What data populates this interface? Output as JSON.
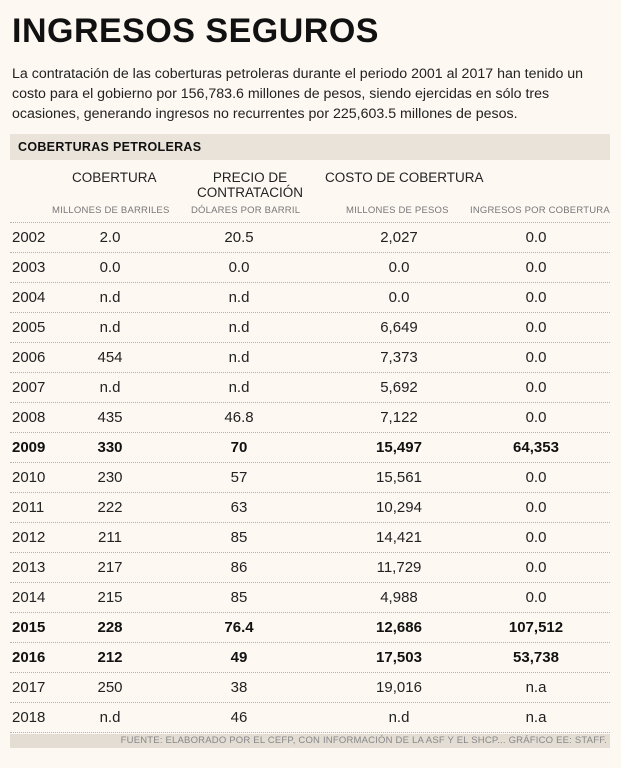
{
  "header": {
    "title": "INGRESOS SEGUROS",
    "intro": "La contratación de las coberturas petroleras durante el periodo 2001 al 2017 han tenido un costo para el gobierno por 156,783.6 millones de pesos, siendo ejercidas en sólo tres ocasiones, generando ingresos no recurrentes por 225,603.5 millones de pesos."
  },
  "table": {
    "section_title": "COBERTURAS PETROLERAS",
    "columns": {
      "cobertura": "COBERTURA",
      "precio_l1": "PRECIO DE",
      "precio_l2": "CONTRATACIÓN",
      "costo": "COSTO DE COBERTURA"
    },
    "subheaders": {
      "cobertura": "MILLONES DE BARRILES",
      "precio": "DÓLARES POR BARRIL",
      "costo": "MILLONES DE PESOS",
      "ingresos": "INGRESOS POR COBERTURA"
    },
    "rows": [
      {
        "year": "2002",
        "cobertura": "2.0",
        "precio": "20.5",
        "costo": "2,027",
        "ingresos": "0.0",
        "highlight": false
      },
      {
        "year": "2003",
        "cobertura": "0.0",
        "precio": "0.0",
        "costo": "0.0",
        "ingresos": "0.0",
        "highlight": false
      },
      {
        "year": "2004",
        "cobertura": "n.d",
        "precio": "n.d",
        "costo": "0.0",
        "ingresos": "0.0",
        "highlight": false
      },
      {
        "year": "2005",
        "cobertura": "n.d",
        "precio": "n.d",
        "costo": "6,649",
        "ingresos": "0.0",
        "highlight": false
      },
      {
        "year": "2006",
        "cobertura": "454",
        "precio": "n.d",
        "costo": "7,373",
        "ingresos": "0.0",
        "highlight": false
      },
      {
        "year": "2007",
        "cobertura": "n.d",
        "precio": "n.d",
        "costo": "5,692",
        "ingresos": "0.0",
        "highlight": false
      },
      {
        "year": "2008",
        "cobertura": "435",
        "precio": "46.8",
        "costo": "7,122",
        "ingresos": "0.0",
        "highlight": false
      },
      {
        "year": "2009",
        "cobertura": "330",
        "precio": "70",
        "costo": "15,497",
        "ingresos": "64,353",
        "highlight": true
      },
      {
        "year": "2010",
        "cobertura": "230",
        "precio": "57",
        "costo": "15,561",
        "ingresos": "0.0",
        "highlight": false
      },
      {
        "year": "2011",
        "cobertura": "222",
        "precio": "63",
        "costo": "10,294",
        "ingresos": "0.0",
        "highlight": false
      },
      {
        "year": "2012",
        "cobertura": "211",
        "precio": "85",
        "costo": "14,421",
        "ingresos": "0.0",
        "highlight": false
      },
      {
        "year": "2013",
        "cobertura": "217",
        "precio": "86",
        "costo": "11,729",
        "ingresos": "0.0",
        "highlight": false
      },
      {
        "year": "2014",
        "cobertura": "215",
        "precio": "85",
        "costo": "4,988",
        "ingresos": "0.0",
        "highlight": false
      },
      {
        "year": "2015",
        "cobertura": "228",
        "precio": "76.4",
        "costo": "12,686",
        "ingresos": "107,512",
        "highlight": true
      },
      {
        "year": "2016",
        "cobertura": "212",
        "precio": "49",
        "costo": "17,503",
        "ingresos": "53,738",
        "highlight": true
      },
      {
        "year": "2017",
        "cobertura": "250",
        "precio": "38",
        "costo": "19,016",
        "ingresos": "n.a",
        "highlight": false
      },
      {
        "year": "2018",
        "cobertura": "n.d",
        "precio": "46",
        "costo": "n.d",
        "ingresos": "n.a",
        "highlight": false
      }
    ]
  },
  "footer": {
    "source": "FUENTE: ELABORADO POR EL CEFP, CON INFORMACIÓN DE LA ASF Y EL SHCP... GRÁFICO EE: STAFF."
  }
}
